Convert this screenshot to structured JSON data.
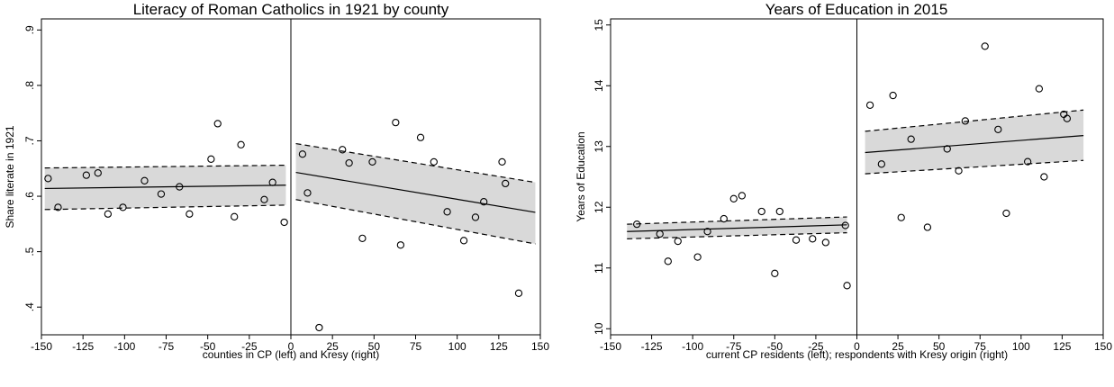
{
  "chart_data": [
    {
      "type": "scatter",
      "title": "Literacy of Roman Catholics in 1921 by county",
      "xlabel": "counties in CP (left) and Kresy (right)",
      "ylabel": "Share literate in 1921",
      "xlim": [
        -150,
        150
      ],
      "ylim": [
        0.35,
        0.92
      ],
      "xticks": [
        -150,
        -125,
        -100,
        -75,
        -50,
        -25,
        0,
        25,
        50,
        75,
        100,
        125,
        150
      ],
      "xtick_labels": [
        "-150",
        "-125",
        "-100",
        "-75",
        "-50",
        "-25",
        "0",
        "25",
        "50",
        "75",
        "100",
        "125",
        "150"
      ],
      "yticks": [
        0.4,
        0.5,
        0.6,
        0.7,
        0.8,
        0.9
      ],
      "ytick_labels": [
        ".4",
        ".5",
        ".6",
        ".7",
        ".8",
        ".9"
      ],
      "cutoff": 0,
      "grid": false,
      "points": [
        [
          -146,
          0.632
        ],
        [
          -140,
          0.58
        ],
        [
          -123,
          0.638
        ],
        [
          -116,
          0.642
        ],
        [
          -110,
          0.568
        ],
        [
          -101,
          0.58
        ],
        [
          -88,
          0.628
        ],
        [
          -78,
          0.604
        ],
        [
          -67,
          0.617
        ],
        [
          -61,
          0.568
        ],
        [
          -48,
          0.667
        ],
        [
          -44,
          0.731
        ],
        [
          -34,
          0.563
        ],
        [
          -30,
          0.693
        ],
        [
          -16,
          0.594
        ],
        [
          -11,
          0.625
        ],
        [
          -4,
          0.553
        ],
        [
          7,
          0.676
        ],
        [
          10,
          0.606
        ],
        [
          17,
          0.363
        ],
        [
          31,
          0.684
        ],
        [
          35,
          0.66
        ],
        [
          43,
          0.524
        ],
        [
          49,
          0.662
        ],
        [
          63,
          0.733
        ],
        [
          66,
          0.512
        ],
        [
          78,
          0.706
        ],
        [
          86,
          0.662
        ],
        [
          94,
          0.572
        ],
        [
          104,
          0.52
        ],
        [
          111,
          0.562
        ],
        [
          116,
          0.59
        ],
        [
          127,
          0.662
        ],
        [
          129,
          0.623
        ],
        [
          137,
          0.425
        ]
      ],
      "fit_left": {
        "x": [
          -148,
          -3
        ],
        "y": [
          0.614,
          0.62
        ],
        "ci_lower": [
          0.576,
          0.584
        ],
        "ci_upper": [
          0.651,
          0.656
        ]
      },
      "fit_right": {
        "x": [
          3,
          147
        ],
        "y": [
          0.643,
          0.571
        ],
        "ci_lower": [
          0.594,
          0.514
        ],
        "ci_upper": [
          0.695,
          0.625
        ]
      }
    },
    {
      "type": "scatter",
      "title": "Years of Education in 2015",
      "xlabel": "current CP residents (left); respondents with Kresy origin (right)",
      "ylabel": "Years of Education",
      "xlim": [
        -150,
        150
      ],
      "ylim": [
        9.9,
        15.1
      ],
      "xticks": [
        -150,
        -125,
        -100,
        -75,
        -50,
        -25,
        0,
        25,
        50,
        75,
        100,
        125,
        150
      ],
      "xtick_labels": [
        "-150",
        "-125",
        "-100",
        "-75",
        "-50",
        "-25",
        "0",
        "25",
        "50",
        "75",
        "100",
        "125",
        "150"
      ],
      "yticks": [
        10,
        11,
        12,
        13,
        14,
        15
      ],
      "ytick_labels": [
        "10",
        "11",
        "12",
        "13",
        "14",
        "15"
      ],
      "cutoff": 0,
      "grid": false,
      "points": [
        [
          -134,
          11.72
        ],
        [
          -120,
          11.56
        ],
        [
          -115,
          11.11
        ],
        [
          -109,
          11.44
        ],
        [
          -97,
          11.18
        ],
        [
          -91,
          11.6
        ],
        [
          -81,
          11.81
        ],
        [
          -75,
          12.14
        ],
        [
          -70,
          12.19
        ],
        [
          -58,
          11.93
        ],
        [
          -50,
          10.91
        ],
        [
          -47,
          11.93
        ],
        [
          -37,
          11.46
        ],
        [
          -27,
          11.48
        ],
        [
          -19,
          11.42
        ],
        [
          -7,
          11.7
        ],
        [
          -6,
          10.71
        ],
        [
          8,
          13.68
        ],
        [
          15,
          12.71
        ],
        [
          22,
          13.84
        ],
        [
          27,
          11.83
        ],
        [
          33,
          13.12
        ],
        [
          43,
          11.67
        ],
        [
          55,
          12.96
        ],
        [
          62,
          12.6
        ],
        [
          66,
          13.42
        ],
        [
          78,
          14.65
        ],
        [
          86,
          13.28
        ],
        [
          91,
          11.9
        ],
        [
          104,
          12.75
        ],
        [
          111,
          13.95
        ],
        [
          114,
          12.5
        ],
        [
          126,
          13.53
        ],
        [
          128,
          13.46
        ]
      ],
      "fit_left": {
        "x": [
          -140,
          -6
        ],
        "y": [
          11.6,
          11.71
        ],
        "ci_lower": [
          11.48,
          11.58
        ],
        "ci_upper": [
          11.72,
          11.84
        ]
      },
      "fit_right": {
        "x": [
          5,
          138
        ],
        "y": [
          12.9,
          13.18
        ],
        "ci_lower": [
          12.55,
          12.77
        ],
        "ci_upper": [
          13.25,
          13.6
        ]
      }
    }
  ]
}
